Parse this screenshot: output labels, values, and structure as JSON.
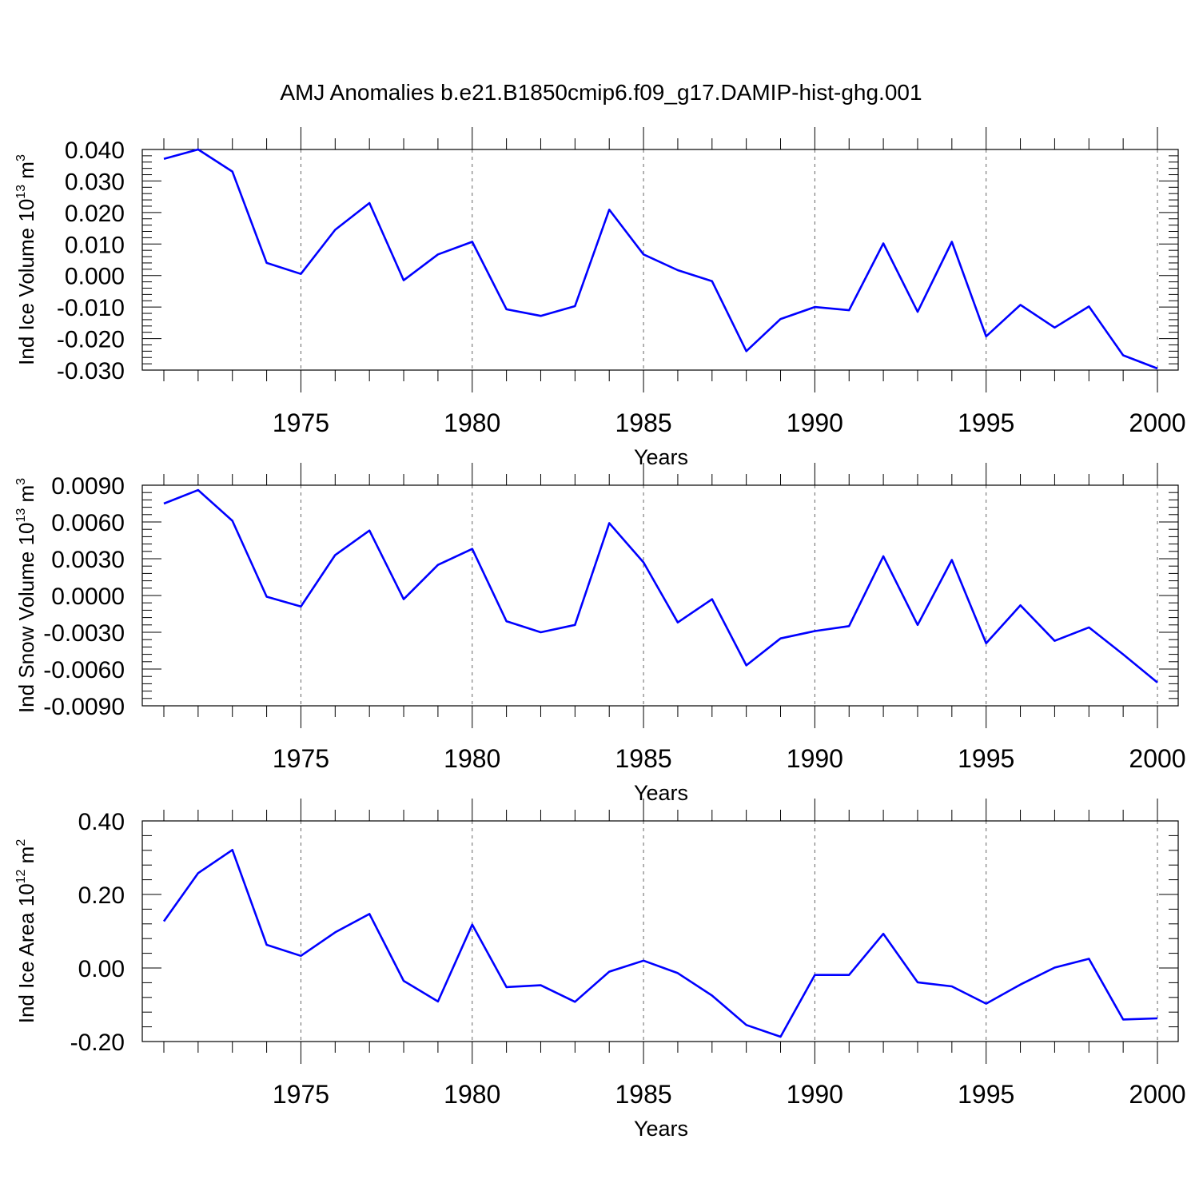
{
  "title": "AMJ Anomalies b.e21.B1850cmip6.f09_g17.DAMIP-hist-ghg.001",
  "colors": {
    "line": "#0000ff",
    "axis": "#000000",
    "grid": "#666666"
  },
  "chart_data": [
    {
      "type": "line",
      "ylabel": {
        "text": "Ind Ice Volume 10",
        "exp": "13",
        "unit": " m",
        "unit_exp": "3"
      },
      "xlabel": "Years",
      "xlim": [
        1971,
        2000
      ],
      "ylim": [
        -0.03,
        0.04
      ],
      "yticks": [
        -0.03,
        -0.02,
        -0.01,
        0.0,
        0.01,
        0.02,
        0.03,
        0.04
      ],
      "ytick_labels": [
        "-0.030",
        "-0.020",
        "-0.010",
        "0.000",
        "0.010",
        "0.020",
        "0.030",
        "0.040"
      ],
      "xticks": [
        1975,
        1980,
        1985,
        1990,
        1995,
        2000
      ],
      "xtick_labels": [
        "1975",
        "1980",
        "1985",
        "1990",
        "1995",
        "2000"
      ],
      "grid": "vertical dashed lines at labeled years",
      "x": [
        1971,
        1972,
        1973,
        1974,
        1975,
        1976,
        1977,
        1978,
        1979,
        1980,
        1981,
        1982,
        1983,
        1984,
        1985,
        1986,
        1987,
        1988,
        1989,
        1990,
        1991,
        1992,
        1993,
        1994,
        1995,
        1996,
        1997,
        1998,
        1999,
        2000
      ],
      "values": [
        0.037,
        0.04,
        0.033,
        0.004,
        0.0005,
        0.0145,
        0.023,
        -0.0015,
        0.0067,
        0.0107,
        -0.0107,
        -0.0128,
        -0.0097,
        0.0209,
        0.0067,
        0.0017,
        -0.0018,
        -0.024,
        -0.0138,
        -0.01,
        -0.011,
        0.0102,
        -0.0115,
        0.0107,
        -0.0193,
        -0.0093,
        -0.0165,
        -0.0098,
        -0.0253,
        -0.0295
      ]
    },
    {
      "type": "line",
      "ylabel": {
        "text": "Ind Snow Volume 10",
        "exp": "13",
        "unit": " m",
        "unit_exp": "3"
      },
      "xlabel": "Years",
      "xlim": [
        1971,
        2000
      ],
      "ylim": [
        -0.009,
        0.009
      ],
      "yticks": [
        -0.009,
        -0.006,
        -0.003,
        0.0,
        0.003,
        0.006,
        0.009
      ],
      "ytick_labels": [
        "-0.0090",
        "-0.0060",
        "-0.0030",
        "0.0000",
        "0.0030",
        "0.0060",
        "0.0090"
      ],
      "xticks": [
        1975,
        1980,
        1985,
        1990,
        1995,
        2000
      ],
      "xtick_labels": [
        "1975",
        "1980",
        "1985",
        "1990",
        "1995",
        "2000"
      ],
      "grid": "vertical dashed lines at labeled years",
      "x": [
        1971,
        1972,
        1973,
        1974,
        1975,
        1976,
        1977,
        1978,
        1979,
        1980,
        1981,
        1982,
        1983,
        1984,
        1985,
        1986,
        1987,
        1988,
        1989,
        1990,
        1991,
        1992,
        1993,
        1994,
        1995,
        1996,
        1997,
        1998,
        1999,
        2000
      ],
      "values": [
        0.0075,
        0.0086,
        0.0061,
        -0.0001,
        -0.0009,
        0.0033,
        0.0053,
        -0.0003,
        0.0025,
        0.0038,
        -0.0021,
        -0.003,
        -0.0024,
        0.0059,
        0.0027,
        -0.0022,
        -0.0003,
        -0.0057,
        -0.0035,
        -0.0029,
        -0.0025,
        0.0032,
        -0.0024,
        0.0029,
        -0.0039,
        -0.0008,
        -0.0037,
        -0.0026,
        -0.0048,
        -0.0071
      ]
    },
    {
      "type": "line",
      "ylabel": {
        "text": "Ind Ice Area 10",
        "exp": "12",
        "unit": " m",
        "unit_exp": "2"
      },
      "xlabel": "Years",
      "xlim": [
        1971,
        2000
      ],
      "ylim": [
        -0.2,
        0.4
      ],
      "yticks": [
        -0.2,
        0.0,
        0.2,
        0.4
      ],
      "ytick_labels": [
        "-0.20",
        "0.00",
        "0.20",
        "0.40"
      ],
      "xticks": [
        1975,
        1980,
        1985,
        1990,
        1995,
        2000
      ],
      "xtick_labels": [
        "1975",
        "1980",
        "1985",
        "1990",
        "1995",
        "2000"
      ],
      "grid": "vertical dashed lines at labeled years",
      "x": [
        1971,
        1972,
        1973,
        1974,
        1975,
        1976,
        1977,
        1978,
        1979,
        1980,
        1981,
        1982,
        1983,
        1984,
        1985,
        1986,
        1987,
        1988,
        1989,
        1990,
        1991,
        1992,
        1993,
        1994,
        1995,
        1996,
        1997,
        1998,
        1999,
        2000
      ],
      "values": [
        0.127,
        0.258,
        0.321,
        0.063,
        0.033,
        0.097,
        0.147,
        -0.035,
        -0.091,
        0.118,
        -0.052,
        -0.047,
        -0.092,
        -0.01,
        0.02,
        -0.014,
        -0.075,
        -0.155,
        -0.187,
        -0.019,
        -0.019,
        0.093,
        -0.039,
        -0.05,
        -0.097,
        -0.045,
        0.001,
        0.025,
        -0.14,
        -0.137
      ]
    }
  ]
}
